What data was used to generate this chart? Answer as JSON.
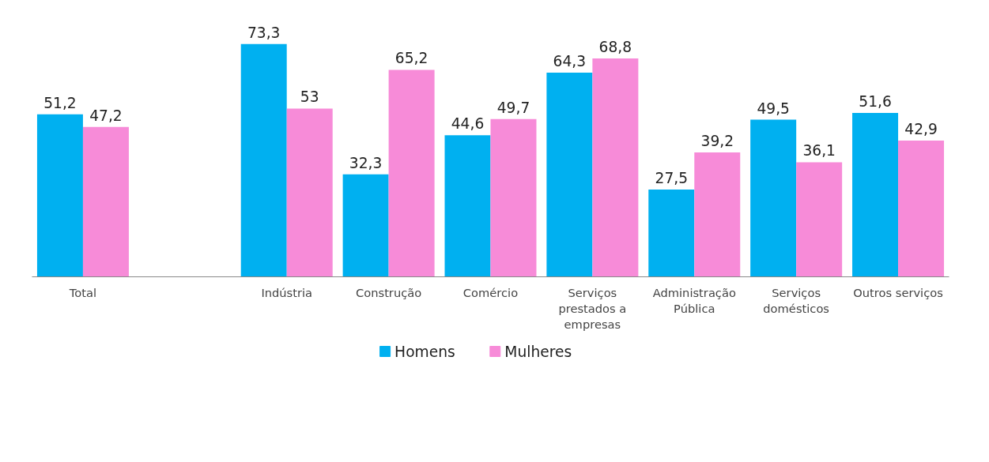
{
  "chart_data": {
    "type": "bar",
    "categories": [
      "Total",
      null,
      "Indústria",
      "Construção",
      "Comércio",
      "Serviços prestados a empresas",
      "Administração Pública",
      "Serviços domésticos",
      "Outros serviços"
    ],
    "series": [
      {
        "name": "Homens",
        "color": "#00b0f0",
        "values": [
          51.2,
          null,
          73.3,
          32.3,
          44.6,
          64.3,
          27.5,
          49.5,
          51.6
        ],
        "value_labels": [
          "51,2",
          null,
          "73,3",
          "32,3",
          "44,6",
          "64,3",
          "27,5",
          "49,5",
          "51,6"
        ]
      },
      {
        "name": "Mulheres",
        "color": "#f78bd8",
        "values": [
          47.2,
          null,
          53,
          65.2,
          49.7,
          68.8,
          39.2,
          36.1,
          42.9
        ],
        "value_labels": [
          "47,2",
          null,
          "53",
          "65,2",
          "49,7",
          "68,8",
          "39,2",
          "36,1",
          "42,9"
        ]
      }
    ],
    "legend": "bottom"
  }
}
